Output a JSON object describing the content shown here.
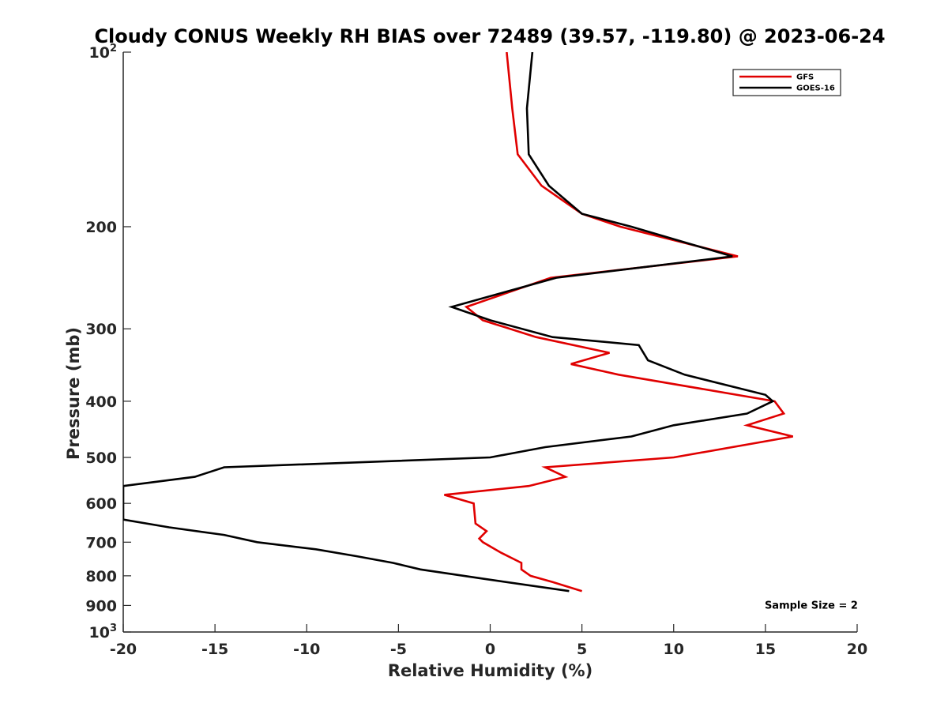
{
  "chart_data": {
    "type": "line",
    "title": "Cloudy CONUS Weekly RH BIAS over 72489 (39.57, -119.80) @ 2023-06-24",
    "xlabel": "Relative Humidity (%)",
    "ylabel": "Pressure (mb)",
    "xlim": [
      -20,
      20
    ],
    "ylim": [
      100,
      1000
    ],
    "y_scale": "log",
    "y_reversed": true,
    "grid": false,
    "legend_position": "top-right",
    "x_ticks": [
      -20,
      -15,
      -10,
      -5,
      0,
      5,
      10,
      15,
      20
    ],
    "y_ticks": [
      {
        "value": 100,
        "base": "10",
        "exp": "2"
      },
      {
        "value": 200,
        "label": "200"
      },
      {
        "value": 300,
        "label": "300"
      },
      {
        "value": 400,
        "label": "400"
      },
      {
        "value": 500,
        "label": "500"
      },
      {
        "value": 600,
        "label": "600"
      },
      {
        "value": 700,
        "label": "700"
      },
      {
        "value": 800,
        "label": "800"
      },
      {
        "value": 900,
        "label": "900"
      },
      {
        "value": 1000,
        "base": "10",
        "exp": "3"
      }
    ],
    "series": [
      {
        "name": "GFS",
        "color": "#e00000",
        "points": [
          [
            0.9,
            100
          ],
          [
            1.2,
            125
          ],
          [
            1.5,
            150
          ],
          [
            2.8,
            170
          ],
          [
            5.0,
            190
          ],
          [
            7.1,
            200
          ],
          [
            13.5,
            225
          ],
          [
            3.3,
            245
          ],
          [
            -1.3,
            275
          ],
          [
            -0.4,
            290
          ],
          [
            2.5,
            310
          ],
          [
            6.5,
            330
          ],
          [
            4.4,
            345
          ],
          [
            7.0,
            360
          ],
          [
            15.5,
            400
          ],
          [
            16.0,
            420
          ],
          [
            14.0,
            440
          ],
          [
            16.5,
            460
          ],
          [
            10.0,
            500
          ],
          [
            3.0,
            520
          ],
          [
            4.1,
            540
          ],
          [
            2.1,
            560
          ],
          [
            -2.5,
            580
          ],
          [
            -0.9,
            600
          ],
          [
            -0.8,
            650
          ],
          [
            -0.2,
            670
          ],
          [
            -0.6,
            690
          ],
          [
            -0.4,
            700
          ],
          [
            0.6,
            730
          ],
          [
            1.7,
            760
          ],
          [
            1.7,
            780
          ],
          [
            2.2,
            800
          ],
          [
            3.4,
            820
          ],
          [
            5.0,
            850
          ]
        ]
      },
      {
        "name": "GOES-16",
        "color": "#000000",
        "points": [
          [
            2.3,
            100
          ],
          [
            2.0,
            125
          ],
          [
            2.1,
            150
          ],
          [
            3.2,
            170
          ],
          [
            5.0,
            190
          ],
          [
            7.7,
            200
          ],
          [
            13.2,
            225
          ],
          [
            3.6,
            245
          ],
          [
            -2.1,
            275
          ],
          [
            0.0,
            290
          ],
          [
            3.4,
            310
          ],
          [
            8.1,
            320
          ],
          [
            8.6,
            340
          ],
          [
            10.6,
            360
          ],
          [
            15.0,
            390
          ],
          [
            15.4,
            400
          ],
          [
            14.0,
            420
          ],
          [
            10.0,
            440
          ],
          [
            7.7,
            460
          ],
          [
            3.0,
            480
          ],
          [
            0.0,
            500
          ],
          [
            -14.5,
            520
          ],
          [
            -16.1,
            540
          ],
          [
            -20.0,
            560
          ],
          [
            -20.0,
            640
          ],
          [
            -17.5,
            660
          ],
          [
            -14.5,
            680
          ],
          [
            -12.7,
            700
          ],
          [
            -9.5,
            720
          ],
          [
            -7.3,
            740
          ],
          [
            -5.3,
            760
          ],
          [
            -3.8,
            780
          ],
          [
            -0.3,
            810
          ],
          [
            4.3,
            850
          ]
        ]
      }
    ],
    "annotations": [
      {
        "text": "Sample Size = 2",
        "x": 17.5,
        "y": 900
      }
    ]
  }
}
